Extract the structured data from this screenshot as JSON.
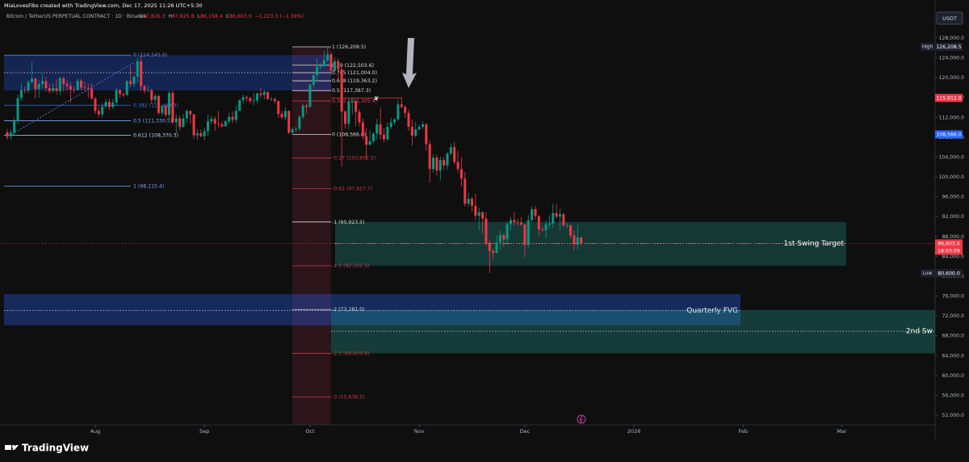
{
  "header": {
    "attribution": "MiaLovesFibs created with TradingView.com, Dec 17, 2025 11:26 UTC+5:30",
    "symbol": "Bitcoin / TetherUS PERPETUAL CONTRACT · 1D · Binance",
    "ohlc": [
      {
        "key": "O",
        "value": "87,826.3"
      },
      {
        "key": "H",
        "value": "87,925.8"
      },
      {
        "key": "L",
        "value": "86,158.4"
      },
      {
        "key": "C",
        "value": "86,603.0"
      }
    ],
    "change": "−1,223.3 (−1.39%)"
  },
  "chart_data": {
    "type": "candlestick",
    "currency": "USDT",
    "up_color": "#089981",
    "down_color": "#f23645",
    "open": [
      109000,
      108200,
      108900,
      111300,
      115900,
      117500,
      117400,
      119100,
      119800,
      117700,
      118700,
      119300,
      117900,
      117300,
      117900,
      117300,
      119900,
      118700,
      118300,
      117600,
      117500,
      119400,
      118000,
      117900,
      117800,
      115800,
      113300,
      112600,
      114200,
      115100,
      114100,
      115000,
      117500,
      116700,
      116500,
      119300,
      118700,
      120200,
      123300,
      118300,
      117400,
      117500,
      115500,
      116300,
      112900,
      114300,
      112500,
      116900,
      111000,
      111800,
      110100,
      111800,
      113300,
      112600,
      108400,
      108800,
      108200,
      109200,
      111200,
      111700,
      110700,
      110600,
      110200,
      111200,
      112100,
      111500,
      113300,
      115500,
      116100,
      115900,
      115300,
      115400,
      116800,
      116500,
      117100,
      115700,
      115700,
      115300,
      112700,
      112000,
      113300,
      108900,
      109600,
      109700,
      112100,
      114400,
      114100,
      118600,
      120500,
      122200,
      122400,
      123500,
      124700,
      121400,
      123300,
      121700,
      113200,
      110700,
      115200,
      115300,
      113100,
      111000,
      108200,
      106500,
      107200,
      108700,
      110600,
      108500,
      107600,
      110100,
      111000,
      111600,
      114600,
      114100,
      112900,
      110100,
      108300,
      109600,
      110100,
      110600,
      106600,
      101600,
      103900,
      101300,
      103400,
      102300,
      104700,
      106000,
      103000,
      101600,
      99700,
      94600,
      95600,
      94200,
      92200,
      92900,
      91600,
      86600,
      85100,
      84700,
      86800,
      88300,
      87400,
      90500,
      91300,
      90900,
      90800,
      90400,
      86300,
      91300,
      93500,
      92100,
      89400,
      89300,
      90400,
      90600,
      92700,
      92000,
      92500,
      90300,
      90300,
      88200,
      86400,
      87826.3
    ],
    "high": [
      109700,
      109600,
      111900,
      116600,
      118900,
      118200,
      119500,
      123200,
      120000,
      119500,
      120900,
      120200,
      118800,
      118900,
      119700,
      120200,
      120100,
      119500,
      119100,
      118300,
      119800,
      119800,
      119200,
      118800,
      118900,
      116100,
      114100,
      114800,
      115700,
      115800,
      115700,
      118000,
      117700,
      117100,
      119500,
      122300,
      120400,
      124000,
      124500,
      118600,
      118400,
      117800,
      116800,
      116600,
      114600,
      114600,
      117400,
      117400,
      112600,
      112400,
      112700,
      113500,
      113400,
      112700,
      109600,
      109500,
      109900,
      112600,
      112200,
      112200,
      113300,
      111200,
      111500,
      112900,
      113200,
      114300,
      115600,
      116600,
      116400,
      116200,
      116900,
      117000,
      117900,
      117500,
      117300,
      116100,
      116000,
      115400,
      113300,
      114000,
      113400,
      110000,
      110100,
      112400,
      114800,
      114800,
      118700,
      121000,
      123900,
      123000,
      125400,
      126200,
      125100,
      124000,
      123800,
      122500,
      113400,
      115800,
      116000,
      115400,
      113600,
      111700,
      109800,
      109400,
      109000,
      111700,
      114000,
      109800,
      111000,
      111900,
      111800,
      115600,
      116100,
      114400,
      113500,
      111600,
      111100,
      110600,
      111200,
      110800,
      107300,
      104600,
      104500,
      104100,
      104000,
      105000,
      106700,
      107000,
      105300,
      104000,
      101000,
      96800,
      96000,
      96600,
      93800,
      93100,
      93000,
      87400,
      85600,
      88200,
      89300,
      88600,
      91000,
      91900,
      92900,
      91600,
      91900,
      90500,
      92300,
      94100,
      94100,
      92300,
      90000,
      91200,
      92300,
      94600,
      94500,
      93600,
      92800,
      90700,
      90000,
      89200,
      90300,
      87925.8
    ],
    "low": [
      107500,
      107500,
      108300,
      110700,
      115300,
      116800,
      116900,
      118900,
      115800,
      116000,
      117800,
      117200,
      116800,
      117000,
      116600,
      116500,
      117200,
      117400,
      115000,
      116900,
      117400,
      117400,
      117400,
      115900,
      115600,
      112700,
      112100,
      112000,
      113700,
      113400,
      113700,
      114300,
      115900,
      116000,
      116400,
      118100,
      118200,
      118900,
      117300,
      116800,
      117100,
      114700,
      114700,
      112600,
      112400,
      112000,
      111700,
      110600,
      108800,
      109300,
      110000,
      110800,
      110800,
      107700,
      107500,
      108000,
      107300,
      108300,
      110600,
      109300,
      110000,
      110000,
      110100,
      110700,
      110800,
      110900,
      113300,
      114800,
      115200,
      114800,
      114400,
      114800,
      115900,
      115600,
      115500,
      115300,
      114800,
      111900,
      111600,
      111400,
      108700,
      108600,
      109100,
      109300,
      111600,
      112700,
      113900,
      118000,
      119300,
      121600,
      122100,
      123100,
      120600,
      121100,
      119400,
      102000,
      109700,
      109600,
      112600,
      110200,
      110200,
      107500,
      103600,
      106300,
      106700,
      107500,
      107500,
      106900,
      107200,
      109700,
      110600,
      111300,
      113800,
      111900,
      109300,
      106300,
      108000,
      109400,
      109700,
      105300,
      98900,
      100800,
      100300,
      99300,
      101500,
      101400,
      104300,
      102500,
      100800,
      98100,
      94000,
      94000,
      93000,
      91200,
      89300,
      88600,
      86100,
      80600,
      83500,
      84600,
      85300,
      85900,
      86300,
      89200,
      90100,
      90300,
      90100,
      83800,
      85600,
      90900,
      91300,
      88100,
      88900,
      87700,
      89600,
      89700,
      91600,
      89300,
      89900,
      89700,
      87600,
      85200,
      85300,
      86158.4
    ],
    "close": [
      108200,
      108900,
      111300,
      115900,
      117500,
      117400,
      119100,
      119800,
      117700,
      118700,
      119300,
      117900,
      117300,
      117900,
      117300,
      119900,
      118700,
      118300,
      117600,
      117500,
      119400,
      118000,
      117900,
      117800,
      115800,
      113300,
      112600,
      114200,
      115100,
      114100,
      115000,
      117500,
      116700,
      116500,
      119300,
      118700,
      120200,
      123300,
      118300,
      117400,
      117500,
      115500,
      116300,
      112900,
      114300,
      112500,
      116900,
      111000,
      111800,
      110100,
      111800,
      113300,
      112600,
      108400,
      108800,
      108200,
      109200,
      111200,
      111700,
      110700,
      110600,
      110200,
      111200,
      112100,
      111500,
      113300,
      115500,
      116100,
      115900,
      115300,
      115400,
      116800,
      116500,
      117100,
      115700,
      115700,
      115300,
      112700,
      112000,
      113300,
      108900,
      109600,
      109700,
      112100,
      114400,
      114100,
      118600,
      120500,
      122200,
      122400,
      123500,
      124700,
      121400,
      123300,
      121700,
      113200,
      110700,
      115200,
      115300,
      113100,
      111000,
      108200,
      106500,
      107200,
      108700,
      110600,
      108500,
      107600,
      110100,
      111000,
      111600,
      114600,
      114100,
      112900,
      110100,
      108300,
      109600,
      110100,
      110600,
      106600,
      101600,
      103900,
      101300,
      103400,
      102300,
      104700,
      106000,
      103000,
      101600,
      99700,
      94600,
      95600,
      94200,
      92200,
      92900,
      91600,
      86600,
      85100,
      84700,
      86800,
      88300,
      87400,
      90500,
      91300,
      90900,
      90800,
      90400,
      86300,
      91300,
      93500,
      92100,
      89400,
      89300,
      90400,
      90600,
      92700,
      92000,
      92500,
      90300,
      90300,
      88200,
      86400,
      87800,
      86603
    ],
    "xlim": [
      -1,
      263
    ],
    "xticks": [
      {
        "value": 25,
        "label": "Aug"
      },
      {
        "value": 56,
        "label": "Sep"
      },
      {
        "value": 86,
        "label": "Oct"
      },
      {
        "value": 117,
        "label": "Nov"
      },
      {
        "value": 147,
        "label": "Dec"
      },
      {
        "value": 178,
        "label": "2026"
      },
      {
        "value": 209,
        "label": "Feb"
      },
      {
        "value": 237,
        "label": "Mar"
      }
    ],
    "ylim": [
      50000,
      130000
    ],
    "yticks": [
      {
        "value": 128000,
        "label": "128,000.0"
      },
      {
        "value": 124000,
        "label": "124,000.0"
      },
      {
        "value": 120000,
        "label": "120,000.0"
      },
      {
        "value": 116000,
        "label": "116,000.0"
      },
      {
        "value": 112000,
        "label": "112,000.0"
      },
      {
        "value": 108000,
        "label": "108,000.0"
      },
      {
        "value": 104000,
        "label": "104,000.0"
      },
      {
        "value": 100000,
        "label": "100,000.0"
      },
      {
        "value": 96000,
        "label": "96,000.0"
      },
      {
        "value": 92000,
        "label": "92,000.0"
      },
      {
        "value": 88000,
        "label": "88,000.0"
      },
      {
        "value": 84000,
        "label": "84,000.0"
      },
      {
        "value": 80000,
        "label": "80,000.0"
      },
      {
        "value": 76000,
        "label": "76,000.0"
      },
      {
        "value": 72000,
        "label": "72,000.0"
      },
      {
        "value": 68000,
        "label": "68,000.0"
      },
      {
        "value": 64000,
        "label": "64,000.0"
      },
      {
        "value": 60000,
        "label": "60,000.0"
      },
      {
        "value": 56000,
        "label": "56,000.0"
      },
      {
        "value": 52000,
        "label": "52,000.0"
      }
    ],
    "fib_left": [
      {
        "value": 124545.6,
        "label": "0 (124,545.6)",
        "color": "#5b8def"
      },
      {
        "value": 114449.3,
        "label": "0.382 (114,449.3)",
        "color": "#3d6fe0"
      },
      {
        "value": 111330.5,
        "label": "0.5 (111,330.5)",
        "color": "#7aa6f5"
      },
      {
        "value": 108370.3,
        "label": "0.612 (108,370.3)",
        "color": "#b7d2f5"
      },
      {
        "value": 98115.4,
        "label": "1 (98,115.4)",
        "color": "#7aa6f5"
      }
    ],
    "fib_right": [
      {
        "value": 126208.5,
        "label": "1 (126,208.5)",
        "color": "#d9d9d9"
      },
      {
        "value": 122503.6,
        "label": "0.79 (122,503.6)",
        "color": "#d9d9d9"
      },
      {
        "value": 121004,
        "label": "0.705 (121,004.0)",
        "color": "#d9d9d9"
      },
      {
        "value": 119363.2,
        "label": "0.618 (119,363.2)",
        "color": "#d9d9d9"
      },
      {
        "value": 117387.3,
        "label": "0.5 (117,387.3)",
        "color": "#d9d9d9"
      },
      {
        "value": 115305.4,
        "label": "0.382 (115,305.4)",
        "color": "#e0414f"
      },
      {
        "value": 108566.6,
        "label": "0 (108,566.6)",
        "color": "#d9d9d9"
      },
      {
        "value": 103802.5,
        "label": "-0.27 (103,802.5)",
        "color": "#c83a46"
      },
      {
        "value": 97627.7,
        "label": "-0.62 (97,627.7)",
        "color": "#c83a46"
      },
      {
        "value": 90923.5,
        "label": "-1 (90,923.5)",
        "color": "#d9d9d9"
      },
      {
        "value": 82102.3,
        "label": "-1.5 (82,102.3)",
        "color": "#c83a46"
      },
      {
        "value": 73281,
        "label": "-2 (73,281.0)",
        "color": "#d9d9d9"
      },
      {
        "value": 64459.8,
        "label": "-2.5 (64,459.8)",
        "color": "#c83a46"
      },
      {
        "value": 55638.5,
        "label": "-3 (55,638.5)",
        "color": "#c83a46"
      }
    ],
    "zones": [
      {
        "top": 124545.6,
        "bottom": 117400,
        "mid": 121000,
        "color": "rgba(41,98,255,0.28)"
      },
      {
        "label": "1st Swing Target",
        "top": 90923.5,
        "bottom": 82102.3,
        "mid": 86600,
        "color": "rgba(38,166,154,0.28)"
      },
      {
        "label": "Quarterly FVG",
        "top": 76400,
        "bottom": 70100,
        "mid": 73100,
        "color": "rgba(41,98,255,0.32)"
      },
      {
        "label": "2nd Sw",
        "top": 73200,
        "bottom": 64459.8,
        "mid": 68900,
        "color": "rgba(38,166,154,0.3)"
      }
    ],
    "marker": {
      "label": "x",
      "value": 115912
    },
    "badges": [
      {
        "tag": "High",
        "value": 126208.5,
        "label": "126,208.5",
        "color": "#1e222d"
      },
      {
        "value": 115912,
        "label": "115,912.0",
        "color": "#f23645"
      },
      {
        "value": 108566,
        "label": "108,566.0",
        "color": "#2962ff"
      },
      {
        "value": 86603,
        "label": "86,603.0",
        "sub": "18:03:09",
        "color": "#f23645"
      },
      {
        "tag": "Low",
        "value": 80600,
        "label": "80,600.0",
        "color": "#1e222d"
      }
    ]
  },
  "footer": {
    "brand": "TradingView"
  }
}
